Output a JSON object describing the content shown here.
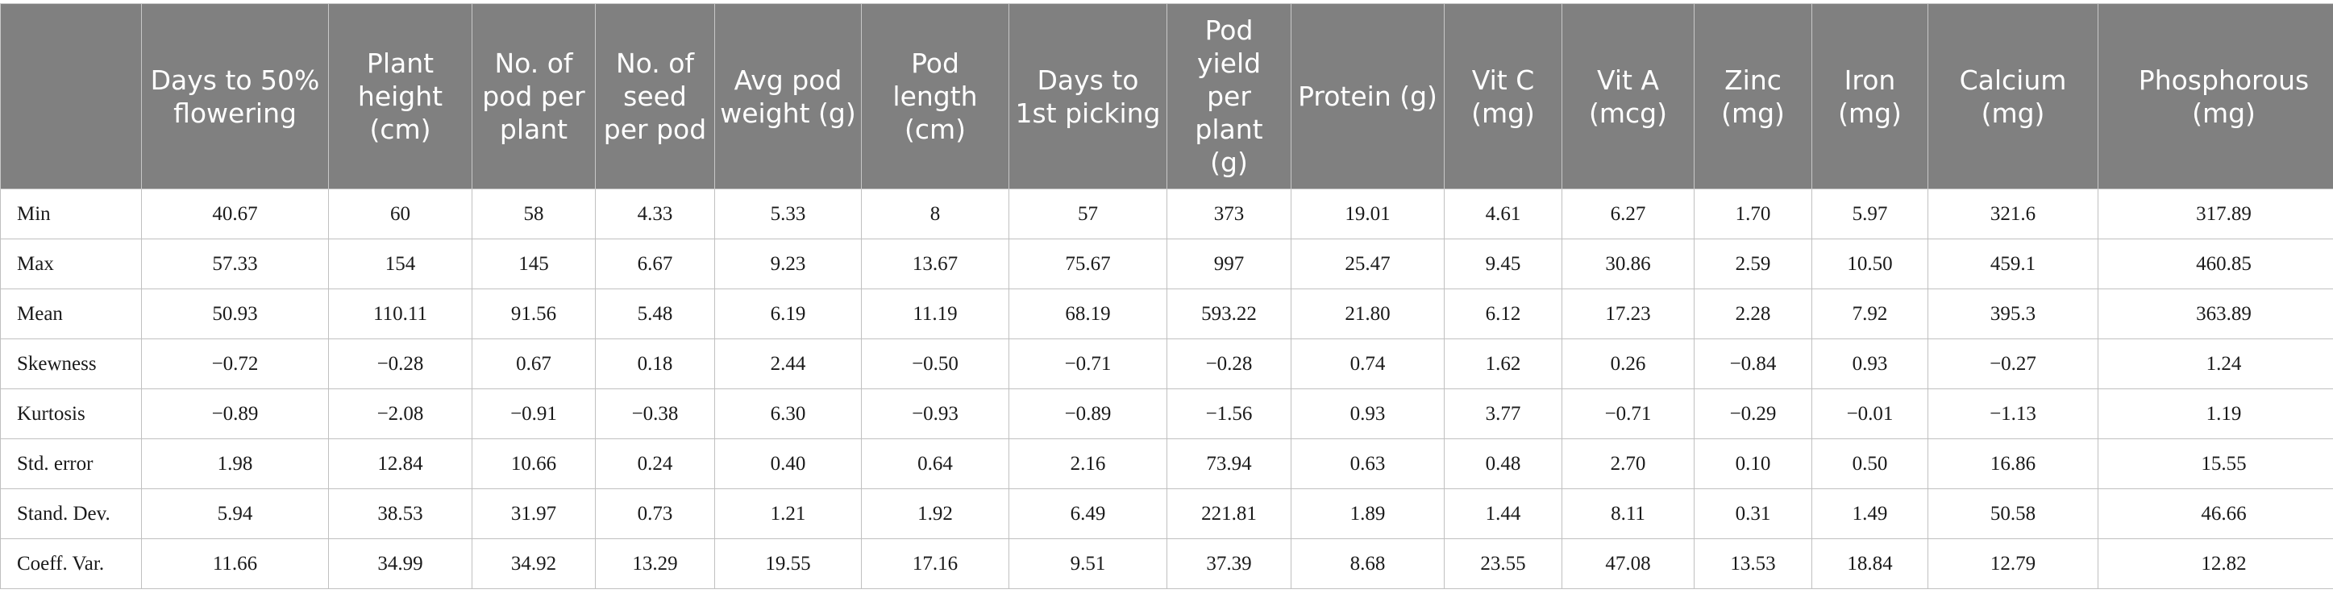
{
  "table": {
    "headers": [
      "",
      "Days to 50% flowering",
      "Plant height (cm)",
      "No. of pod per plant",
      "No. of seed per pod",
      "Avg pod weight (g)",
      "Pod length (cm)",
      "Days to 1st picking",
      "Pod yield per plant (g)",
      "Protein (g)",
      "Vit C (mg)",
      "Vit A (mcg)",
      "Zinc (mg)",
      "Iron (mg)",
      "Calcium (mg)",
      "Phosphorous (mg)"
    ],
    "rows": [
      [
        "Min",
        "40.67",
        "60",
        "58",
        "4.33",
        "5.33",
        "8",
        "57",
        "373",
        "19.01",
        "4.61",
        "6.27",
        "1.70",
        "5.97",
        "321.6",
        "317.89"
      ],
      [
        "Max",
        "57.33",
        "154",
        "145",
        "6.67",
        "9.23",
        "13.67",
        "75.67",
        "997",
        "25.47",
        "9.45",
        "30.86",
        "2.59",
        "10.50",
        "459.1",
        "460.85"
      ],
      [
        "Mean",
        "50.93",
        "110.11",
        "91.56",
        "5.48",
        "6.19",
        "11.19",
        "68.19",
        "593.22",
        "21.80",
        "6.12",
        "17.23",
        "2.28",
        "7.92",
        "395.3",
        "363.89"
      ],
      [
        "Skewness",
        "−0.72",
        "−0.28",
        "0.67",
        "0.18",
        "2.44",
        "−0.50",
        "−0.71",
        "−0.28",
        "0.74",
        "1.62",
        "0.26",
        "−0.84",
        "0.93",
        "−0.27",
        "1.24"
      ],
      [
        "Kurtosis",
        "−0.89",
        "−2.08",
        "−0.91",
        "−0.38",
        "6.30",
        "−0.93",
        "−0.89",
        "−1.56",
        "0.93",
        "3.77",
        "−0.71",
        "−0.29",
        "−0.01",
        "−1.13",
        "1.19"
      ],
      [
        "Std. error",
        "1.98",
        "12.84",
        "10.66",
        "0.24",
        "0.40",
        "0.64",
        "2.16",
        "73.94",
        "0.63",
        "0.48",
        "2.70",
        "0.10",
        "0.50",
        "16.86",
        "15.55"
      ],
      [
        "Stand. Dev.",
        "5.94",
        "38.53",
        "31.97",
        "0.73",
        "1.21",
        "1.92",
        "6.49",
        "221.81",
        "1.89",
        "1.44",
        "8.11",
        "0.31",
        "1.49",
        "50.58",
        "46.66"
      ],
      [
        "Coeff. Var.",
        "11.66",
        "34.99",
        "34.92",
        "13.29",
        "19.55",
        "17.16",
        "9.51",
        "37.39",
        "8.68",
        "23.55",
        "47.08",
        "13.53",
        "18.84",
        "12.79",
        "12.82"
      ]
    ]
  }
}
